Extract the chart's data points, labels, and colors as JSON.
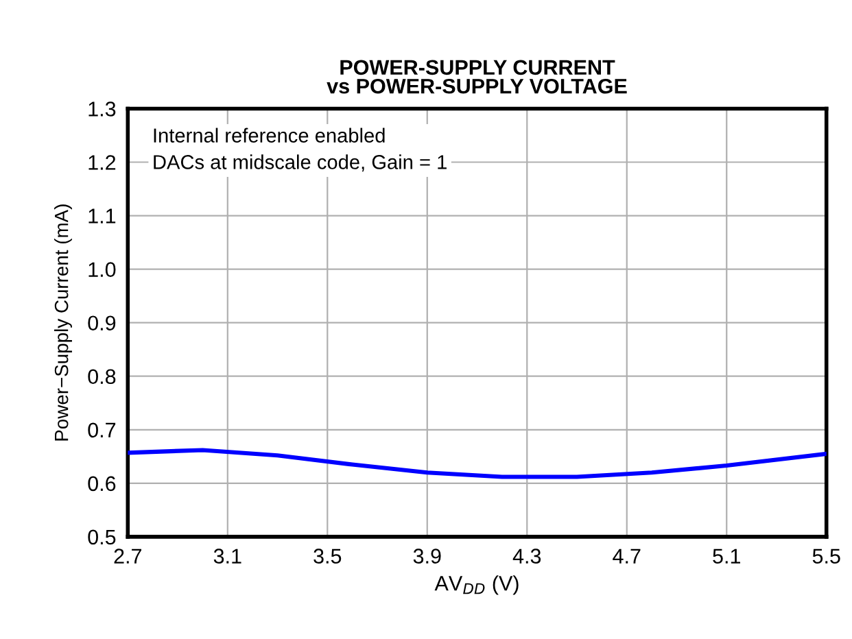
{
  "chart_data": {
    "type": "line",
    "title": "POWER-SUPPLY CURRENT\nvs POWER-SUPPLY VOLTAGE",
    "xlabel": "AV$_{DD}$ (V)",
    "ylabel": "Power−Supply Current (mA)",
    "annotations": [
      "Internal reference enabled\nDACs at midscale code, Gain = 1"
    ],
    "series": [
      {
        "color": "#0000ff",
        "x": [
          2.7,
          3.0,
          3.3,
          3.6,
          3.9,
          4.2,
          4.5,
          4.8,
          5.1,
          5.5
        ],
        "values": [
          0.657,
          0.662,
          0.652,
          0.635,
          0.62,
          0.612,
          0.612,
          0.62,
          0.633,
          0.655
        ]
      }
    ],
    "xlim": [
      2.7,
      5.5
    ],
    "xticks": [
      2.7,
      3.1,
      3.5,
      3.9,
      4.3,
      4.7,
      5.1,
      5.5
    ],
    "ylim": [
      0.5,
      1.3
    ],
    "yticks": [
      0.5,
      0.6,
      0.7,
      0.8,
      0.9,
      {
        "value": 1.0,
        "label": "1.0"
      },
      1.1,
      1.2,
      1.3
    ],
    "grid": true
  }
}
